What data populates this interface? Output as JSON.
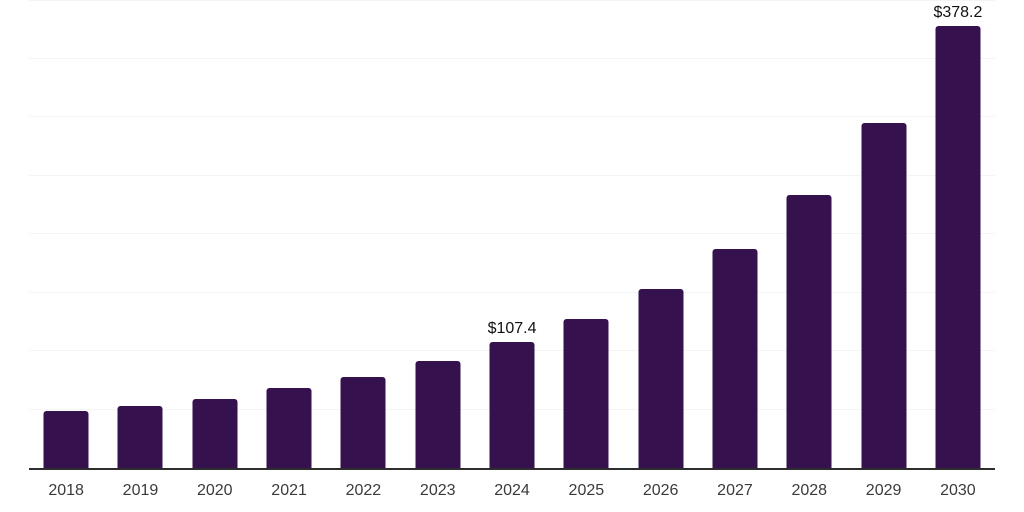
{
  "chart_data": {
    "type": "bar",
    "title": "",
    "xlabel": "",
    "ylabel": "",
    "categories": [
      "2018",
      "2019",
      "2020",
      "2021",
      "2022",
      "2023",
      "2024",
      "2025",
      "2026",
      "2027",
      "2028",
      "2029",
      "2030"
    ],
    "values": [
      48.8,
      53.4,
      59.1,
      68.2,
      77.8,
      91.2,
      107.4,
      127.0,
      152.8,
      187.5,
      233.5,
      294.9,
      378.2
    ],
    "data_labels": {
      "2024": "$107.4",
      "2030": "$378.2"
    },
    "ylim": [
      0,
      400
    ],
    "gridline_step": 50,
    "grid": true,
    "legend": false,
    "y_axis_tick_labels_visible": false,
    "colors": {
      "bar": "#35124E",
      "axis": "#2D2D2D",
      "gridline": "#F4F4F4",
      "value_label": "#111111",
      "tick_label": "#3B3B3B",
      "background": "#FFFFFF"
    }
  }
}
